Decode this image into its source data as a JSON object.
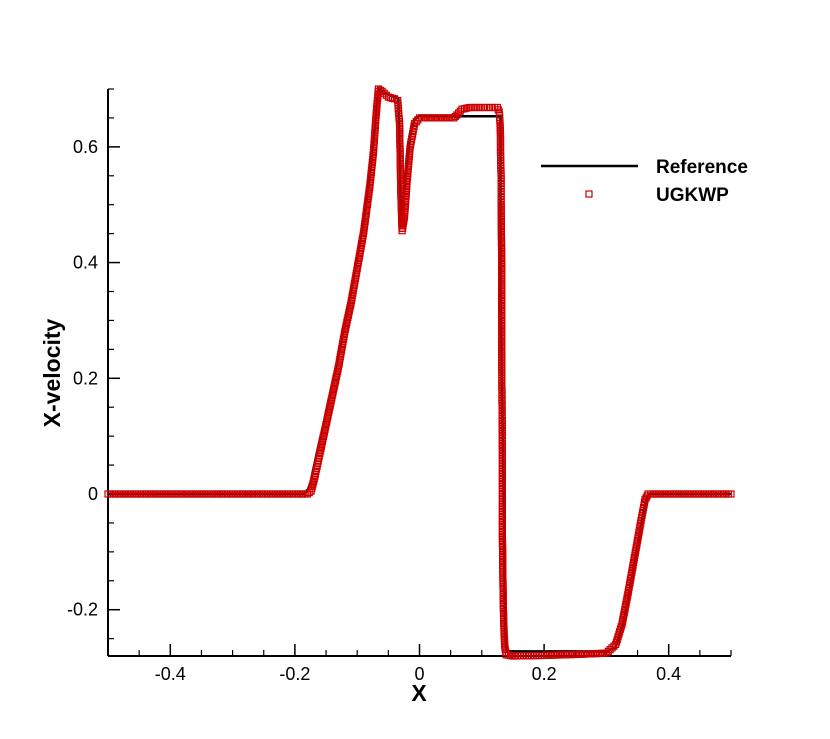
{
  "chart_data": {
    "type": "line",
    "xlabel": "X",
    "ylabel": "X-velocity",
    "xlim": [
      -0.5,
      0.5
    ],
    "ylim": [
      -0.28,
      0.7
    ],
    "x_ticks": [
      -0.4,
      -0.2,
      0,
      0.2,
      0.4
    ],
    "x_tick_labels": [
      "-0.4",
      "-0.2",
      "0",
      "0.2",
      "0.4"
    ],
    "y_ticks": [
      -0.2,
      0,
      0.2,
      0.4,
      0.6
    ],
    "y_tick_labels": [
      "-0.2",
      "0",
      "0.2",
      "0.4",
      "0.6"
    ],
    "grid": false,
    "legend_position": "top-right",
    "series": [
      {
        "name": "Reference",
        "style": "line",
        "color": "#000000",
        "points": [
          [
            -0.5,
            0
          ],
          [
            -0.186,
            0
          ],
          [
            -0.18,
            0.005
          ],
          [
            -0.175,
            0.02
          ],
          [
            -0.165,
            0.07
          ],
          [
            -0.15,
            0.14
          ],
          [
            -0.13,
            0.24
          ],
          [
            -0.11,
            0.35
          ],
          [
            -0.09,
            0.47
          ],
          [
            -0.08,
            0.55
          ],
          [
            -0.072,
            0.63
          ],
          [
            -0.066,
            0.7
          ],
          [
            -0.06,
            0.697
          ],
          [
            -0.05,
            0.69
          ],
          [
            -0.04,
            0.686
          ],
          [
            -0.034,
            0.684
          ],
          [
            -0.032,
            0.6
          ],
          [
            -0.03,
            0.47
          ],
          [
            -0.026,
            0.51
          ],
          [
            -0.02,
            0.57
          ],
          [
            -0.015,
            0.62
          ],
          [
            -0.008,
            0.648
          ],
          [
            0,
            0.653
          ],
          [
            0.13,
            0.653
          ],
          [
            0.13,
            0.35
          ],
          [
            0.135,
            0.0
          ],
          [
            0.137,
            -0.24
          ],
          [
            0.14,
            -0.272
          ],
          [
            0.3,
            -0.272
          ],
          [
            0.315,
            -0.265
          ],
          [
            0.33,
            -0.21
          ],
          [
            0.345,
            -0.12
          ],
          [
            0.358,
            -0.04
          ],
          [
            0.365,
            -0.005
          ],
          [
            0.37,
            0
          ],
          [
            0.5,
            0
          ]
        ]
      },
      {
        "name": "UGKWP",
        "style": "square-markers",
        "color": "#cc0000",
        "points": [
          [
            -0.5,
            0
          ],
          [
            -0.18,
            0
          ],
          [
            -0.174,
            0.005
          ],
          [
            -0.168,
            0.03
          ],
          [
            -0.16,
            0.07
          ],
          [
            -0.15,
            0.12
          ],
          [
            -0.14,
            0.17
          ],
          [
            -0.13,
            0.22
          ],
          [
            -0.12,
            0.28
          ],
          [
            -0.11,
            0.33
          ],
          [
            -0.1,
            0.39
          ],
          [
            -0.09,
            0.45
          ],
          [
            -0.08,
            0.53
          ],
          [
            -0.074,
            0.59
          ],
          [
            -0.07,
            0.65
          ],
          [
            -0.066,
            0.7
          ],
          [
            -0.06,
            0.696
          ],
          [
            -0.05,
            0.686
          ],
          [
            -0.04,
            0.683
          ],
          [
            -0.035,
            0.68
          ],
          [
            -0.032,
            0.64
          ],
          [
            -0.03,
            0.52
          ],
          [
            -0.028,
            0.455
          ],
          [
            -0.024,
            0.48
          ],
          [
            -0.02,
            0.54
          ],
          [
            -0.015,
            0.6
          ],
          [
            -0.008,
            0.64
          ],
          [
            0.0,
            0.65
          ],
          [
            0.055,
            0.65
          ],
          [
            0.06,
            0.655
          ],
          [
            0.068,
            0.665
          ],
          [
            0.08,
            0.668
          ],
          [
            0.1,
            0.668
          ],
          [
            0.125,
            0.668
          ],
          [
            0.128,
            0.66
          ],
          [
            0.129,
            0.645
          ],
          [
            0.13,
            0.62
          ],
          [
            0.13,
            0.59
          ],
          [
            0.131,
            0.55
          ],
          [
            0.131,
            0.505
          ],
          [
            0.132,
            0.39
          ],
          [
            0.132,
            0.24
          ],
          [
            0.133,
            0.075
          ],
          [
            0.133,
            -0.065
          ],
          [
            0.134,
            -0.155
          ],
          [
            0.135,
            -0.215
          ],
          [
            0.136,
            -0.245
          ],
          [
            0.137,
            -0.265
          ],
          [
            0.139,
            -0.278
          ],
          [
            0.15,
            -0.28
          ],
          [
            0.2,
            -0.279
          ],
          [
            0.26,
            -0.277
          ],
          [
            0.3,
            -0.275
          ],
          [
            0.315,
            -0.26
          ],
          [
            0.325,
            -0.225
          ],
          [
            0.335,
            -0.17
          ],
          [
            0.345,
            -0.11
          ],
          [
            0.355,
            -0.05
          ],
          [
            0.362,
            -0.01
          ],
          [
            0.367,
            0
          ],
          [
            0.5,
            0
          ]
        ]
      }
    ]
  }
}
